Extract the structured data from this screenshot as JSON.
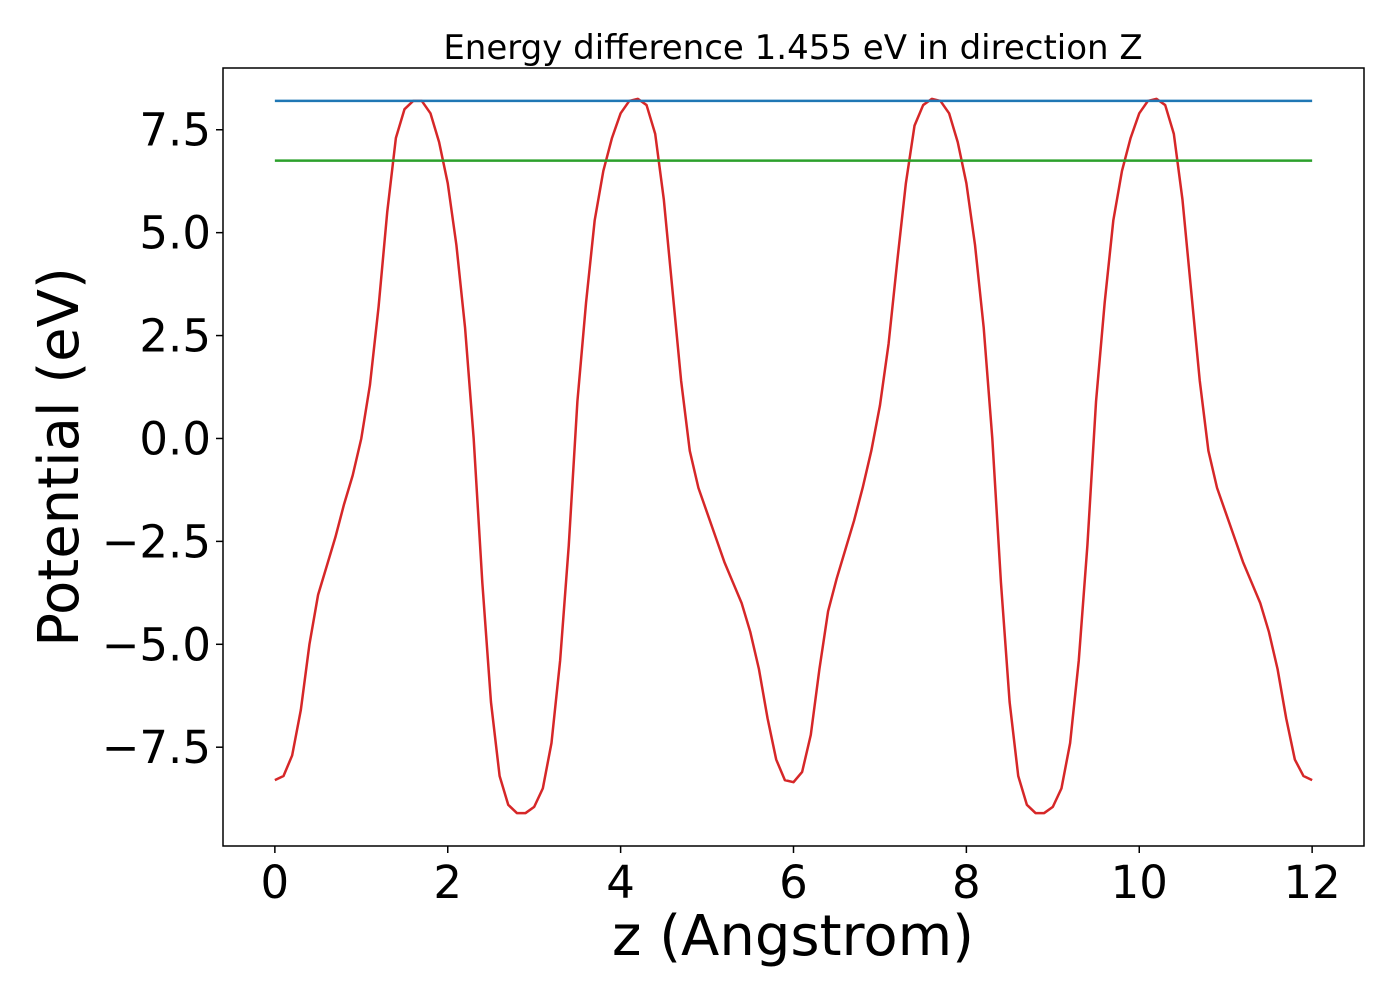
{
  "chart_data": {
    "type": "line",
    "title": "Energy difference 1.455 eV in direction Z",
    "xlabel": "z (Angstrom)",
    "ylabel": "Potential (eV)",
    "xlim": [
      -0.6,
      12.6
    ],
    "ylim": [
      -9.9,
      9.0
    ],
    "xticks": [
      0,
      2,
      4,
      6,
      8,
      10,
      12
    ],
    "xtick_labels": [
      "0",
      "2",
      "4",
      "6",
      "8",
      "10",
      "12"
    ],
    "yticks": [
      -7.5,
      -5.0,
      -2.5,
      0.0,
      2.5,
      5.0,
      7.5
    ],
    "ytick_labels": [
      "−7.5",
      "−5.0",
      "−2.5",
      "0.0",
      "2.5",
      "5.0",
      "7.5"
    ],
    "grid": false,
    "series": [
      {
        "color": "#d62728",
        "x": [
          0,
          0.1,
          0.2,
          0.3,
          0.4,
          0.5,
          0.6,
          0.7,
          0.8,
          0.9,
          1.0,
          1.1,
          1.2,
          1.3,
          1.4,
          1.5,
          1.6,
          1.7,
          1.8,
          1.9,
          2.0,
          2.1,
          2.2,
          2.3,
          2.4,
          2.5,
          2.6,
          2.7,
          2.8,
          2.9,
          3.0,
          3.1,
          3.2,
          3.3,
          3.4,
          3.5,
          3.6,
          3.7,
          3.8,
          3.9,
          4.0,
          4.1,
          4.2,
          4.3,
          4.4,
          4.5,
          4.6,
          4.7,
          4.8,
          4.9,
          5.0,
          5.1,
          5.2,
          5.3,
          5.4,
          5.5,
          5.6,
          5.7,
          5.8,
          5.9,
          6.0,
          6.1,
          6.2,
          6.3,
          6.4,
          6.5,
          6.6,
          6.7,
          6.8,
          6.9,
          7.0,
          7.1,
          7.2,
          7.3,
          7.4,
          7.5,
          7.6,
          7.7,
          7.8,
          7.9,
          8.0,
          8.1,
          8.2,
          8.3,
          8.4,
          8.5,
          8.6,
          8.7,
          8.8,
          8.9,
          9.0,
          9.1,
          9.2,
          9.3,
          9.4,
          9.5,
          9.6,
          9.7,
          9.8,
          9.9,
          10.0,
          10.1,
          10.2,
          10.3,
          10.4,
          10.5,
          10.6,
          10.7,
          10.8,
          10.9,
          11.0,
          11.1,
          11.2,
          11.3,
          11.4,
          11.5,
          11.6,
          11.7,
          11.8,
          11.9,
          12.0
        ],
        "y": [
          -8.3,
          -8.2,
          -7.7,
          -6.6,
          -5.0,
          -3.8,
          -3.1,
          -2.4,
          -1.6,
          -0.9,
          0.0,
          1.3,
          3.2,
          5.5,
          7.3,
          8.0,
          8.2,
          8.2,
          7.9,
          7.2,
          6.2,
          4.7,
          2.7,
          0.0,
          -3.5,
          -6.4,
          -8.2,
          -8.9,
          -9.1,
          -9.1,
          -8.95,
          -8.5,
          -7.4,
          -5.4,
          -2.6,
          0.9,
          3.3,
          5.3,
          6.5,
          7.3,
          7.9,
          8.2,
          8.25,
          8.1,
          7.4,
          5.8,
          3.6,
          1.4,
          -0.3,
          -1.2,
          -1.8,
          -2.4,
          -3.0,
          -3.5,
          -4.0,
          -4.7,
          -5.6,
          -6.8,
          -7.8,
          -8.3,
          -8.35,
          -8.1,
          -7.2,
          -5.6,
          -4.2,
          -3.4,
          -2.7,
          -2.0,
          -1.2,
          -0.3,
          0.8,
          2.3,
          4.3,
          6.2,
          7.6,
          8.1,
          8.25,
          8.2,
          7.9,
          7.2,
          6.2,
          4.7,
          2.7,
          0.0,
          -3.5,
          -6.4,
          -8.2,
          -8.9,
          -9.1,
          -9.1,
          -8.95,
          -8.5,
          -7.4,
          -5.4,
          -2.6,
          0.9,
          3.3,
          5.3,
          6.5,
          7.3,
          7.9,
          8.2,
          8.25,
          8.1,
          7.4,
          5.8,
          3.6,
          1.4,
          -0.3,
          -1.2,
          -1.8,
          -2.4,
          -3.0,
          -3.5,
          -4.0,
          -4.7,
          -5.6,
          -6.8,
          -7.8,
          -8.2,
          -8.3
        ]
      },
      {
        "color": "#1f77b4",
        "x": [
          0,
          12
        ],
        "y": [
          8.2,
          8.2
        ]
      },
      {
        "color": "#2ca02c",
        "x": [
          0,
          12
        ],
        "y": [
          6.75,
          6.75
        ]
      }
    ]
  }
}
